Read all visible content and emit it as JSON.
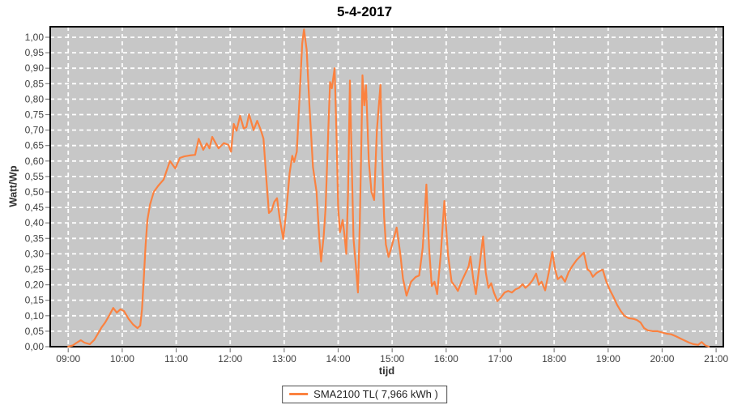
{
  "title": "5-4-2017",
  "legend": {
    "label": "SMA2100 TL( 7,966 kWh )",
    "line_color": "#fb8240"
  },
  "chart_data": {
    "type": "line",
    "title": "5-4-2017",
    "xlabel": "tijd",
    "ylabel": "Watt/Wp",
    "legend_position": "bottom-center",
    "grid": "on-white-dashed",
    "x_tick_labels": [
      "09:00",
      "10:00",
      "11:00",
      "12:00",
      "13:00",
      "14:00",
      "15:00",
      "16:00",
      "17:00",
      "18:00",
      "19:00",
      "20:00",
      "21:00"
    ],
    "x_tick_minutes": [
      540,
      600,
      660,
      720,
      780,
      840,
      900,
      960,
      1020,
      1080,
      1140,
      1200,
      1260
    ],
    "y_tick_labels": [
      "0,00",
      "0,05",
      "0,10",
      "0,15",
      "0,20",
      "0,25",
      "0,30",
      "0,35",
      "0,40",
      "0,45",
      "0,50",
      "0,55",
      "0,60",
      "0,65",
      "0,70",
      "0,75",
      "0,80",
      "0,85",
      "0,90",
      "0,95",
      "1,00"
    ],
    "y_tick_values": [
      0,
      0.05,
      0.1,
      0.15,
      0.2,
      0.25,
      0.3,
      0.35,
      0.4,
      0.45,
      0.5,
      0.55,
      0.6,
      0.65,
      0.7,
      0.75,
      0.8,
      0.85,
      0.9,
      0.95,
      1.0
    ],
    "x_domain_minutes": [
      520,
      1268
    ],
    "y_domain": [
      0,
      1.034
    ],
    "colors": {
      "plot_background": "#c7c7c7",
      "gridline": "#ffffff",
      "plot_border": "#000000",
      "tick_text": "#3f3f3f",
      "tick_mark": "#808080",
      "series": "#fb8240"
    },
    "series": [
      {
        "name": "SMA2100 TL( 7,966 kWh )",
        "color": "#fb8240",
        "points": [
          [
            540,
            0
          ],
          [
            545,
            0.004
          ],
          [
            549,
            0.012
          ],
          [
            554,
            0.021
          ],
          [
            558,
            0.013
          ],
          [
            564,
            0.008
          ],
          [
            569,
            0.022
          ],
          [
            573,
            0.042
          ],
          [
            577,
            0.062
          ],
          [
            581,
            0.078
          ],
          [
            585,
            0.098
          ],
          [
            590,
            0.125
          ],
          [
            594,
            0.11
          ],
          [
            598,
            0.121
          ],
          [
            602,
            0.115
          ],
          [
            607,
            0.09
          ],
          [
            612,
            0.072
          ],
          [
            617,
            0.06
          ],
          [
            620,
            0.068
          ],
          [
            622,
            0.12
          ],
          [
            624,
            0.22
          ],
          [
            626,
            0.33
          ],
          [
            628,
            0.41
          ],
          [
            631,
            0.46
          ],
          [
            635,
            0.5
          ],
          [
            640,
            0.52
          ],
          [
            646,
            0.54
          ],
          [
            653,
            0.6
          ],
          [
            659,
            0.576
          ],
          [
            664,
            0.61
          ],
          [
            669,
            0.615
          ],
          [
            675,
            0.618
          ],
          [
            681,
            0.62
          ],
          [
            685,
            0.672
          ],
          [
            690,
            0.636
          ],
          [
            694,
            0.657
          ],
          [
            697,
            0.641
          ],
          [
            700,
            0.678
          ],
          [
            707,
            0.641
          ],
          [
            713,
            0.658
          ],
          [
            718,
            0.652
          ],
          [
            721,
            0.63
          ],
          [
            724,
            0.72
          ],
          [
            727,
            0.698
          ],
          [
            731,
            0.746
          ],
          [
            735,
            0.705
          ],
          [
            738,
            0.71
          ],
          [
            741,
            0.751
          ],
          [
            746,
            0.7
          ],
          [
            750,
            0.73
          ],
          [
            754,
            0.7
          ],
          [
            757,
            0.672
          ],
          [
            760,
            0.55
          ],
          [
            763,
            0.432
          ],
          [
            766,
            0.44
          ],
          [
            769,
            0.468
          ],
          [
            772,
            0.48
          ],
          [
            775,
            0.415
          ],
          [
            779,
            0.348
          ],
          [
            783,
            0.46
          ],
          [
            786,
            0.56
          ],
          [
            789,
            0.617
          ],
          [
            791,
            0.597
          ],
          [
            794,
            0.63
          ],
          [
            797,
            0.8
          ],
          [
            800,
            0.98
          ],
          [
            802,
            1.025
          ],
          [
            805,
            0.96
          ],
          [
            808,
            0.78
          ],
          [
            812,
            0.58
          ],
          [
            816,
            0.5
          ],
          [
            819,
            0.35
          ],
          [
            821,
            0.275
          ],
          [
            824,
            0.36
          ],
          [
            826,
            0.45
          ],
          [
            829,
            0.7
          ],
          [
            831,
            0.855
          ],
          [
            833,
            0.835
          ],
          [
            836,
            0.9
          ],
          [
            838,
            0.7
          ],
          [
            840,
            0.45
          ],
          [
            842,
            0.37
          ],
          [
            845,
            0.41
          ],
          [
            847,
            0.36
          ],
          [
            849,
            0.3
          ],
          [
            851,
            0.5
          ],
          [
            853,
            0.86
          ],
          [
            855,
            0.6
          ],
          [
            857,
            0.35
          ],
          [
            860,
            0.25
          ],
          [
            862,
            0.175
          ],
          [
            864,
            0.4
          ],
          [
            866,
            0.7
          ],
          [
            867,
            0.877
          ],
          [
            869,
            0.78
          ],
          [
            871,
            0.845
          ],
          [
            874,
            0.6
          ],
          [
            877,
            0.5
          ],
          [
            880,
            0.474
          ],
          [
            883,
            0.7
          ],
          [
            887,
            0.846
          ],
          [
            889,
            0.6
          ],
          [
            891,
            0.42
          ],
          [
            893,
            0.33
          ],
          [
            896,
            0.29
          ],
          [
            900,
            0.33
          ],
          [
            905,
            0.385
          ],
          [
            909,
            0.3
          ],
          [
            912,
            0.22
          ],
          [
            916,
            0.165
          ],
          [
            921,
            0.21
          ],
          [
            926,
            0.225
          ],
          [
            930,
            0.23
          ],
          [
            934,
            0.32
          ],
          [
            938,
            0.524
          ],
          [
            941,
            0.32
          ],
          [
            944,
            0.196
          ],
          [
            947,
            0.21
          ],
          [
            950,
            0.17
          ],
          [
            954,
            0.3
          ],
          [
            958,
            0.471
          ],
          [
            962,
            0.3
          ],
          [
            966,
            0.21
          ],
          [
            970,
            0.195
          ],
          [
            973,
            0.18
          ],
          [
            977,
            0.21
          ],
          [
            981,
            0.235
          ],
          [
            985,
            0.26
          ],
          [
            987,
            0.291
          ],
          [
            990,
            0.22
          ],
          [
            993,
            0.17
          ],
          [
            997,
            0.26
          ],
          [
            1001,
            0.356
          ],
          [
            1004,
            0.24
          ],
          [
            1007,
            0.19
          ],
          [
            1010,
            0.205
          ],
          [
            1013,
            0.175
          ],
          [
            1017,
            0.147
          ],
          [
            1021,
            0.16
          ],
          [
            1025,
            0.175
          ],
          [
            1029,
            0.18
          ],
          [
            1033,
            0.175
          ],
          [
            1037,
            0.185
          ],
          [
            1041,
            0.19
          ],
          [
            1045,
            0.202
          ],
          [
            1048,
            0.19
          ],
          [
            1052,
            0.2
          ],
          [
            1056,
            0.215
          ],
          [
            1060,
            0.236
          ],
          [
            1063,
            0.2
          ],
          [
            1066,
            0.21
          ],
          [
            1070,
            0.182
          ],
          [
            1074,
            0.24
          ],
          [
            1078,
            0.306
          ],
          [
            1081,
            0.25
          ],
          [
            1084,
            0.218
          ],
          [
            1088,
            0.228
          ],
          [
            1092,
            0.21
          ],
          [
            1096,
            0.24
          ],
          [
            1100,
            0.26
          ],
          [
            1105,
            0.28
          ],
          [
            1113,
            0.304
          ],
          [
            1117,
            0.25
          ],
          [
            1120,
            0.243
          ],
          [
            1123,
            0.226
          ],
          [
            1127,
            0.238
          ],
          [
            1131,
            0.245
          ],
          [
            1134,
            0.249
          ],
          [
            1138,
            0.21
          ],
          [
            1142,
            0.183
          ],
          [
            1146,
            0.16
          ],
          [
            1150,
            0.135
          ],
          [
            1154,
            0.115
          ],
          [
            1158,
            0.1
          ],
          [
            1163,
            0.092
          ],
          [
            1168,
            0.09
          ],
          [
            1172,
            0.086
          ],
          [
            1176,
            0.078
          ],
          [
            1180,
            0.06
          ],
          [
            1184,
            0.053
          ],
          [
            1190,
            0.05
          ],
          [
            1195,
            0.05
          ],
          [
            1200,
            0.046
          ],
          [
            1205,
            0.042
          ],
          [
            1210,
            0.04
          ],
          [
            1215,
            0.034
          ],
          [
            1220,
            0.027
          ],
          [
            1225,
            0.02
          ],
          [
            1230,
            0.013
          ],
          [
            1235,
            0.008
          ],
          [
            1240,
            0.006
          ],
          [
            1244,
            0.015
          ],
          [
            1248,
            0.004
          ],
          [
            1252,
            0.0
          ]
        ]
      }
    ]
  }
}
